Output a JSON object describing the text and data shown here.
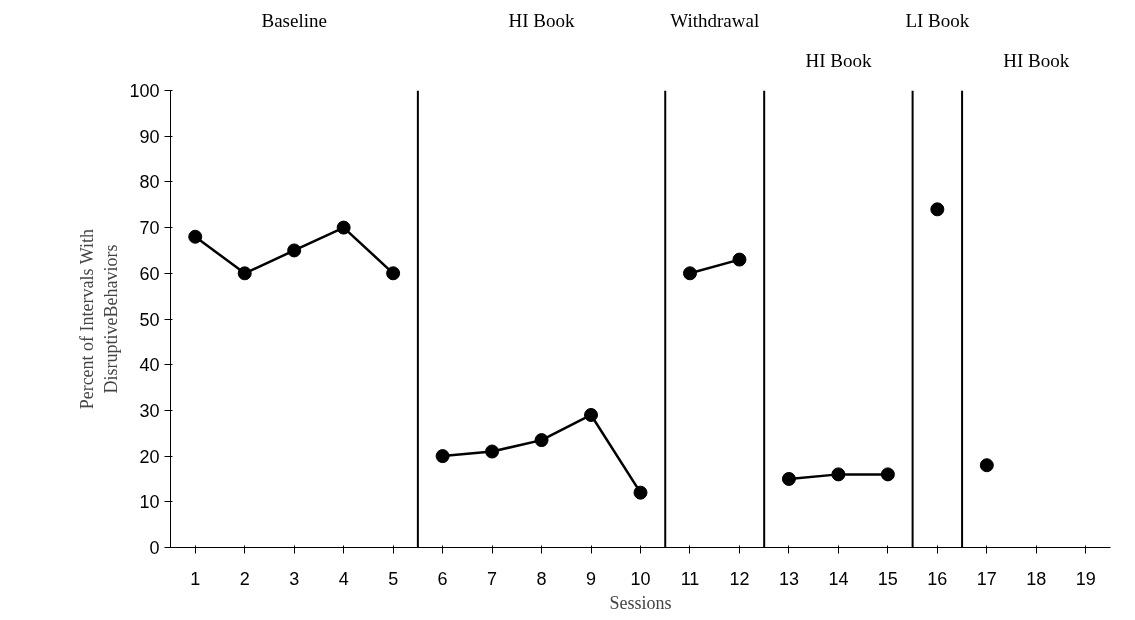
{
  "chart_data": {
    "type": "line",
    "xlabel": "Sessions",
    "ylabel": "Percent of Intervals With\nDisruptiveBehaviors",
    "xlim": [
      0.5,
      19.5
    ],
    "xticks": [
      1,
      2,
      3,
      4,
      5,
      6,
      7,
      8,
      9,
      10,
      11,
      12,
      13,
      14,
      15,
      16,
      17,
      18,
      19
    ],
    "ylim": [
      0,
      100
    ],
    "yticks": [
      0,
      10,
      20,
      30,
      40,
      50,
      60,
      70,
      80,
      90,
      100
    ],
    "grid": false,
    "marker": "circle",
    "line_style": "solid",
    "series": [
      {
        "color": "#000000",
        "x": [
          1,
          2,
          3,
          4,
          5
        ],
        "values": [
          68,
          60,
          65,
          70,
          60
        ]
      },
      {
        "color": "#000000",
        "x": [
          6,
          7,
          8,
          9,
          10
        ],
        "values": [
          20,
          21,
          23.5,
          29,
          12
        ]
      },
      {
        "color": "#000000",
        "x": [
          11,
          12
        ],
        "values": [
          60,
          63
        ]
      },
      {
        "color": "#000000",
        "x": [
          13,
          14,
          15
        ],
        "values": [
          15,
          16,
          16
        ]
      },
      {
        "color": "#000000",
        "x": [
          16
        ],
        "values": [
          74
        ]
      },
      {
        "color": "#000000",
        "x": [
          17
        ],
        "values": [
          18
        ]
      }
    ],
    "ref_lines": [
      {
        "axis": "x",
        "value": 5.5,
        "color": "#000000"
      },
      {
        "axis": "x",
        "value": 10.5,
        "color": "#000000"
      },
      {
        "axis": "x",
        "value": 12.5,
        "color": "#000000"
      },
      {
        "axis": "x",
        "value": 15.5,
        "color": "#000000"
      },
      {
        "axis": "x",
        "value": 16.5,
        "color": "#000000"
      }
    ],
    "annotations": [
      "Baseline",
      "HI Book",
      "Withdrawal",
      "HI Book",
      "LI Book",
      "HI Book"
    ]
  }
}
